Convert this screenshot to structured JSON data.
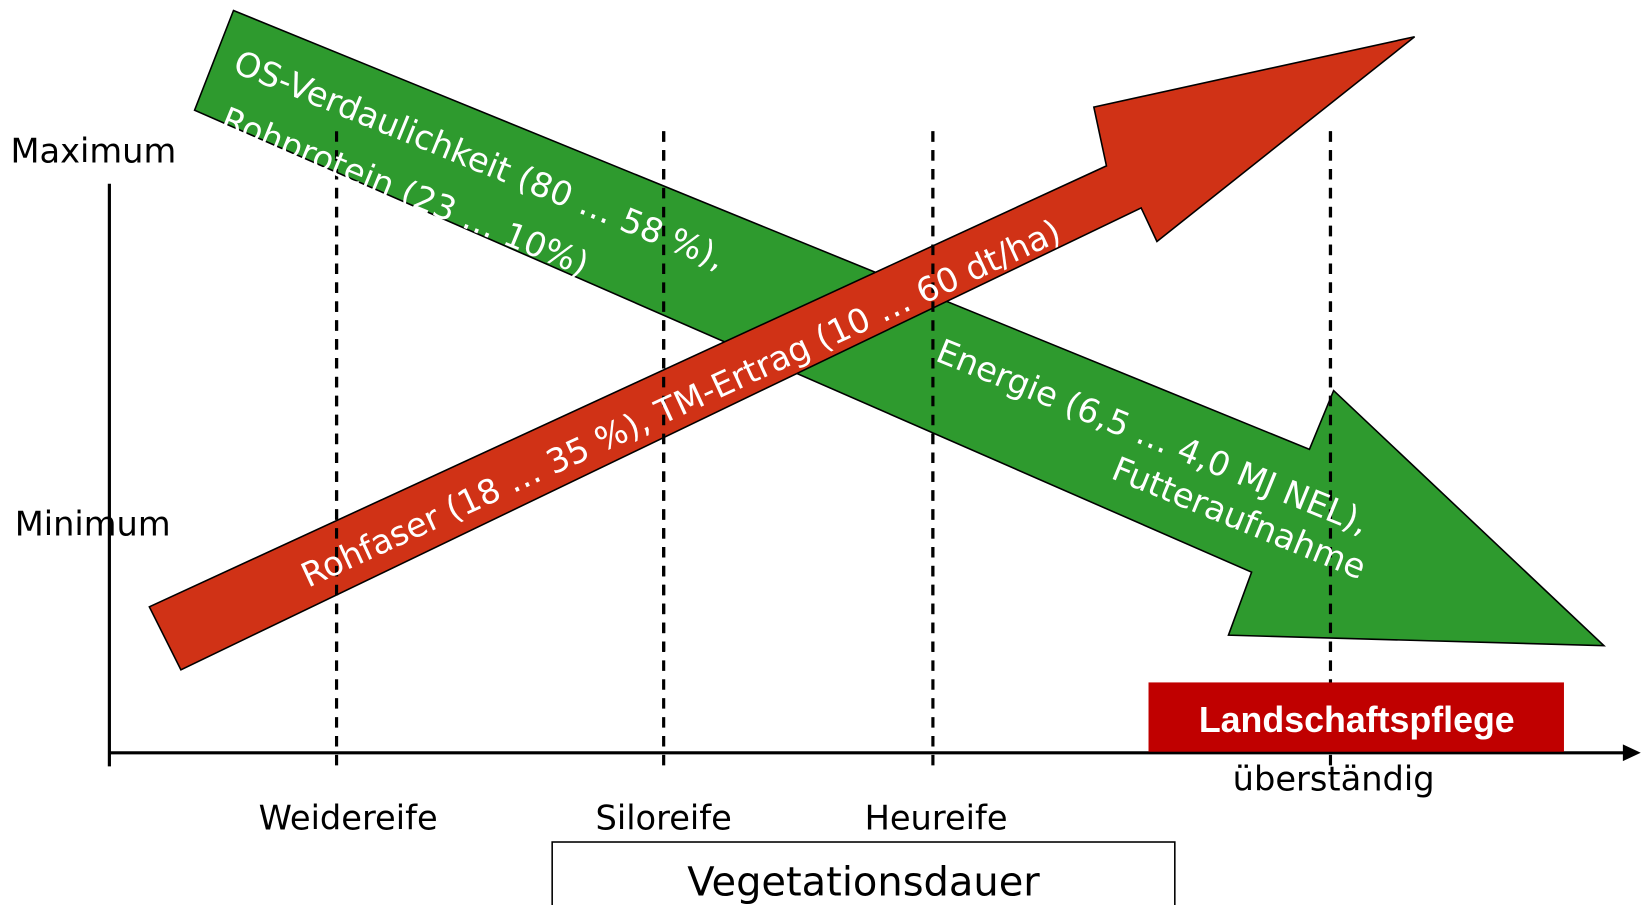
{
  "axis": {
    "max_label": "Maximum",
    "min_label": "Minimum",
    "title": "Vegetationsdauer"
  },
  "stages": [
    "Weidereife",
    "Siloreife",
    "Heureife",
    "überständig"
  ],
  "green_arrow": {
    "lines": [
      "OS-Verdaulichkeit (80 … 58 %),",
      "Rohprotein (23 … 10%)",
      "Energie (6,5 … 4,0 MJ NEL),",
      "Futteraufnahme"
    ]
  },
  "red_arrow": {
    "text": "Rohfaser (18 … 35 %), TM-Ertrag (10 … 60 dt/ha)"
  },
  "badge": "Landschaftspflege"
}
